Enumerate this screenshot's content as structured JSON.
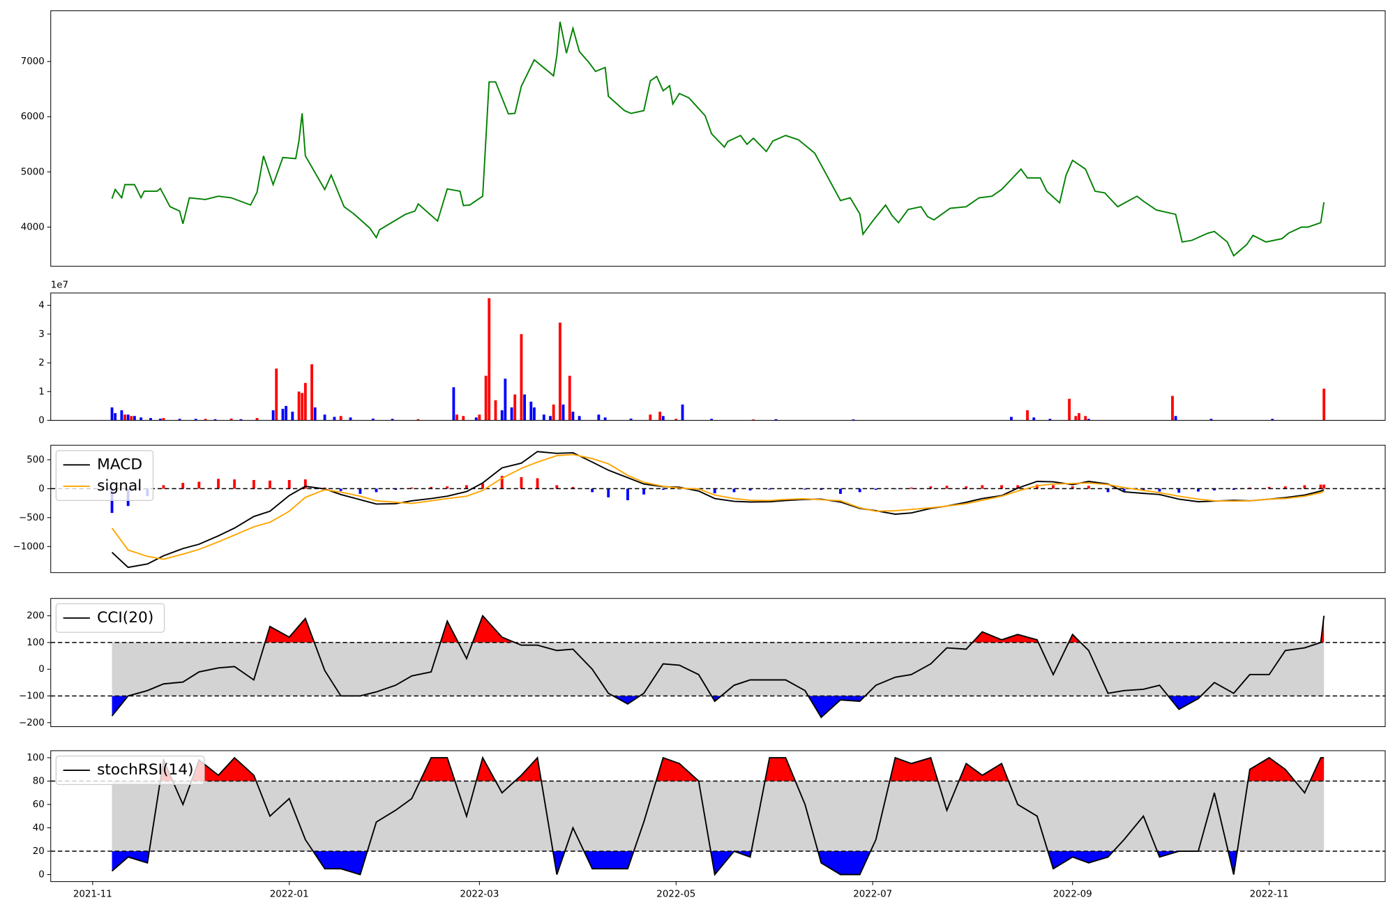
{
  "chart_data": [
    {
      "type": "line",
      "color": "green",
      "xlim": [
        -13,
        401
      ],
      "ylim": [
        3290,
        7920
      ],
      "yticks": [
        4000,
        5000,
        6000,
        7000
      ],
      "x": [
        6,
        7,
        9,
        10,
        13,
        15,
        16,
        20,
        21,
        24,
        27,
        28,
        30,
        35,
        39,
        43,
        49,
        51,
        53,
        56,
        59,
        63,
        64,
        65,
        66,
        72,
        74,
        78,
        81,
        86,
        88,
        89,
        97,
        100,
        101,
        107,
        110,
        114,
        115,
        117,
        121,
        123,
        125,
        127,
        129,
        131,
        133,
        137,
        143,
        144,
        145,
        147,
        149,
        151,
        154,
        156,
        159,
        160,
        165,
        167,
        171,
        173,
        175,
        177,
        179,
        180,
        182,
        185,
        190,
        192,
        196,
        197,
        201,
        203,
        205,
        209,
        211,
        215,
        219,
        224,
        227,
        232,
        235,
        238,
        239,
        242,
        246,
        248,
        250,
        253,
        257,
        259,
        261,
        266,
        271,
        275,
        279,
        282,
        288,
        290,
        294,
        296,
        300,
        302,
        304,
        308,
        311,
        314,
        318,
        324,
        326,
        330,
        336,
        338,
        341,
        346,
        348,
        352,
        354,
        358,
        360,
        364,
        369,
        371,
        375,
        377,
        381,
        382
      ],
      "values": [
        4516,
        4680,
        4530,
        4770,
        4770,
        4530,
        4650,
        4650,
        4700,
        4370,
        4290,
        4060,
        4530,
        4500,
        4560,
        4530,
        4400,
        4630,
        5290,
        4770,
        5260,
        5240,
        5560,
        6060,
        5290,
        4680,
        4940,
        4370,
        4240,
        3980,
        3810,
        3950,
        4230,
        4290,
        4420,
        4110,
        4690,
        4650,
        4390,
        4400,
        4560,
        6630,
        6630,
        6340,
        6050,
        6060,
        6550,
        7030,
        6740,
        7110,
        7720,
        7150,
        7600,
        7180,
        6980,
        6820,
        6890,
        6370,
        6110,
        6060,
        6110,
        6650,
        6730,
        6470,
        6560,
        6230,
        6420,
        6340,
        6020,
        5690,
        5450,
        5550,
        5660,
        5500,
        5610,
        5370,
        5560,
        5660,
        5580,
        5340,
        5020,
        4480,
        4530,
        4240,
        3870,
        4110,
        4400,
        4210,
        4080,
        4320,
        4370,
        4190,
        4130,
        4340,
        4370,
        4530,
        4560,
        4680,
        5050,
        4890,
        4890,
        4650,
        4440,
        4940,
        5210,
        5050,
        4650,
        4620,
        4370,
        4560,
        4470,
        4310,
        4230,
        3730,
        3760,
        3890,
        3920,
        3730,
        3480,
        3680,
        3850,
        3730,
        3790,
        3890,
        4000,
        4000,
        4080,
        4450
      ]
    },
    {
      "type": "bar",
      "offset_label": "1e7",
      "xlim": [
        -13,
        401
      ],
      "ylim": [
        0,
        4.43
      ],
      "yticks": [
        0,
        1,
        2,
        3,
        4
      ],
      "series": [
        {
          "color": "red",
          "x": [
            10,
            12,
            22,
            35,
            43,
            51,
            57,
            64,
            65,
            66,
            68,
            77,
            101,
            113,
            115,
            120,
            122,
            123,
            125,
            131,
            133,
            143,
            145,
            148,
            173,
            176,
            181,
            205,
            290,
            303,
            305,
            306,
            308,
            335,
            382
          ],
          "values": [
            0.2,
            0.15,
            0.08,
            0.05,
            0.06,
            0.08,
            1.8,
            1.0,
            0.95,
            1.3,
            1.95,
            0.15,
            0.04,
            0.2,
            0.15,
            0.2,
            1.55,
            4.25,
            0.7,
            0.9,
            3.0,
            0.55,
            3.4,
            1.55,
            0.2,
            0.3,
            0.05,
            0.03,
            0.35,
            0.75,
            0.15,
            0.25,
            0.15,
            0.85,
            1.1
          ]
        },
        {
          "color": "blue",
          "x": [
            6,
            7,
            9,
            11,
            13,
            15,
            18,
            21,
            27,
            32,
            38,
            46,
            56,
            59,
            60,
            62,
            69,
            72,
            75,
            80,
            87,
            93,
            112,
            119,
            127,
            128,
            130,
            134,
            136,
            137,
            140,
            142,
            146,
            149,
            151,
            157,
            159,
            167,
            177,
            183,
            192,
            212,
            236,
            285,
            292,
            297,
            309,
            336,
            347,
            366
          ],
          "values": [
            0.45,
            0.25,
            0.35,
            0.2,
            0.15,
            0.1,
            0.08,
            0.06,
            0.05,
            0.05,
            0.04,
            0.04,
            0.35,
            0.4,
            0.5,
            0.3,
            0.45,
            0.2,
            0.12,
            0.1,
            0.06,
            0.05,
            1.15,
            0.1,
            0.35,
            1.45,
            0.45,
            0.9,
            0.65,
            0.45,
            0.2,
            0.15,
            0.55,
            0.3,
            0.15,
            0.2,
            0.1,
            0.06,
            0.15,
            0.55,
            0.05,
            0.04,
            0.03,
            0.12,
            0.1,
            0.05,
            0.05,
            0.15,
            0.05,
            0.05
          ]
        }
      ]
    },
    {
      "type": "combo",
      "xlim": [
        -13,
        401
      ],
      "ylim": [
        -1450,
        750
      ],
      "yticks": [
        {
          "value": -1000,
          "label": "−1000"
        },
        {
          "value": -500,
          "label": "−500"
        },
        0,
        500
      ],
      "hline": 0,
      "legend": "upper left",
      "x": [
        6,
        11,
        17,
        22,
        28,
        33,
        39,
        44,
        50,
        55,
        61,
        66,
        72,
        77,
        83,
        88,
        94,
        99,
        105,
        110,
        116,
        121,
        127,
        133,
        138,
        144,
        149,
        155,
        160,
        166,
        171,
        177,
        182,
        188,
        193,
        199,
        204,
        210,
        215,
        221,
        226,
        232,
        238,
        243,
        249,
        254,
        260,
        265,
        271,
        276,
        282,
        287,
        293,
        298,
        304,
        309,
        315,
        320,
        326,
        331,
        337,
        343,
        348,
        354,
        359,
        365,
        370,
        376,
        381,
        382
      ],
      "series": [
        {
          "name": "MACD",
          "color": "black",
          "values": [
            -1100,
            -1360,
            -1300,
            -1160,
            -1035,
            -960,
            -815,
            -680,
            -480,
            -390,
            -120,
            40,
            -5,
            -100,
            -190,
            -265,
            -260,
            -210,
            -170,
            -130,
            -50,
            100,
            360,
            440,
            640,
            610,
            620,
            460,
            320,
            190,
            80,
            35,
            25,
            -40,
            -170,
            -220,
            -230,
            -225,
            -205,
            -185,
            -180,
            -230,
            -340,
            -380,
            -440,
            -420,
            -340,
            -300,
            -235,
            -170,
            -120,
            10,
            125,
            120,
            70,
            125,
            80,
            -55,
            -80,
            -100,
            -180,
            -225,
            -215,
            -200,
            -210,
            -180,
            -155,
            -110,
            -40,
            -20
          ]
        },
        {
          "name": "signal",
          "color": "orange",
          "values": [
            -680,
            -1060,
            -1170,
            -1220,
            -1130,
            -1050,
            -920,
            -800,
            -660,
            -580,
            -390,
            -150,
            -20,
            -60,
            -130,
            -210,
            -235,
            -255,
            -210,
            -170,
            -130,
            -30,
            180,
            350,
            460,
            570,
            590,
            520,
            430,
            230,
            110,
            40,
            10,
            -5,
            -110,
            -170,
            -200,
            -205,
            -185,
            -175,
            -190,
            -210,
            -330,
            -390,
            -380,
            -360,
            -330,
            -300,
            -260,
            -200,
            -130,
            -40,
            50,
            80,
            90,
            100,
            70,
            20,
            -30,
            -70,
            -130,
            -180,
            -210,
            -215,
            -210,
            -180,
            -170,
            -130,
            -70,
            -40
          ]
        }
      ],
      "histogram": {
        "positive_color": "red",
        "negative_color": "blue",
        "values": [
          -420,
          -300,
          -130,
          60,
          100,
          120,
          170,
          160,
          150,
          140,
          150,
          160,
          20,
          -40,
          -90,
          -60,
          -20,
          20,
          30,
          40,
          60,
          90,
          220,
          200,
          180,
          60,
          30,
          -60,
          -150,
          -200,
          -100,
          -20,
          -10,
          -20,
          -80,
          -60,
          -30,
          -15,
          -10,
          -15,
          -20,
          -90,
          -60,
          -20,
          -10,
          20,
          40,
          50,
          40,
          60,
          60,
          60,
          70,
          60,
          40,
          50,
          -60,
          -40,
          -40,
          -50,
          -70,
          -50,
          -30,
          -20,
          20,
          30,
          40,
          60,
          70,
          70
        ]
      }
    },
    {
      "type": "band",
      "xlim": [
        -13,
        401
      ],
      "ylim": [
        -215,
        265
      ],
      "yticks": [
        {
          "value": -200,
          "label": "−200"
        },
        {
          "value": -100,
          "label": "−100"
        },
        0,
        100,
        200
      ],
      "upper": 100,
      "lower": -100,
      "band_color": "lightgray",
      "above_color": "red",
      "below_color": "blue",
      "legend": "upper left",
      "x": [
        6,
        11,
        17,
        22,
        28,
        33,
        39,
        44,
        50,
        55,
        61,
        66,
        72,
        77,
        83,
        88,
        94,
        99,
        105,
        110,
        116,
        121,
        127,
        133,
        138,
        144,
        149,
        155,
        160,
        166,
        171,
        177,
        182,
        188,
        193,
        199,
        204,
        210,
        215,
        221,
        226,
        232,
        238,
        243,
        249,
        254,
        260,
        265,
        271,
        276,
        282,
        287,
        293,
        298,
        304,
        309,
        315,
        320,
        326,
        331,
        337,
        343,
        348,
        354,
        359,
        365,
        370,
        376,
        381,
        382
      ],
      "series": [
        {
          "name": "CCI(20)",
          "color": "black",
          "values": [
            -175,
            -100,
            -80,
            -55,
            -48,
            -10,
            5,
            10,
            -40,
            160,
            120,
            190,
            -5,
            -100,
            -100,
            -85,
            -60,
            -25,
            -10,
            180,
            40,
            200,
            120,
            90,
            90,
            70,
            75,
            0,
            -90,
            -130,
            -90,
            20,
            15,
            -20,
            -120,
            -60,
            -40,
            -40,
            -40,
            -80,
            -180,
            -115,
            -120,
            -60,
            -30,
            -20,
            20,
            80,
            75,
            140,
            110,
            130,
            110,
            -20,
            130,
            70,
            -90,
            -80,
            -75,
            -60,
            -150,
            -110,
            -50,
            -90,
            -20,
            -20,
            70,
            80,
            100,
            200
          ]
        }
      ]
    },
    {
      "type": "band",
      "xlim": [
        -13,
        401
      ],
      "ylim": [
        -6,
        106
      ],
      "yticks": [
        0,
        20,
        40,
        60,
        80,
        100
      ],
      "upper": 80,
      "lower": 20,
      "band_color": "lightgray",
      "above_color": "red",
      "below_color": "blue",
      "legend": "upper left",
      "xticks": [
        {
          "value": 0,
          "label": "2021-11"
        },
        {
          "value": 61,
          "label": "2022-01"
        },
        {
          "value": 120,
          "label": "2022-03"
        },
        {
          "value": 181,
          "label": "2022-05"
        },
        {
          "value": 242,
          "label": "2022-07"
        },
        {
          "value": 304,
          "label": "2022-09"
        },
        {
          "value": 365,
          "label": "2022-11"
        }
      ],
      "x": [
        6,
        11,
        17,
        22,
        28,
        33,
        39,
        44,
        50,
        55,
        61,
        66,
        72,
        77,
        83,
        88,
        94,
        99,
        105,
        110,
        116,
        121,
        127,
        133,
        138,
        144,
        149,
        155,
        160,
        166,
        171,
        177,
        182,
        188,
        193,
        199,
        204,
        210,
        215,
        221,
        226,
        232,
        238,
        243,
        249,
        254,
        260,
        265,
        271,
        276,
        282,
        287,
        293,
        298,
        304,
        309,
        315,
        320,
        326,
        331,
        337,
        343,
        348,
        354,
        359,
        365,
        370,
        376,
        381,
        382
      ],
      "series": [
        {
          "name": "stochRSI(14)",
          "color": "black",
          "values": [
            3,
            15,
            10,
            98,
            60,
            98,
            85,
            100,
            85,
            50,
            65,
            30,
            5,
            5,
            0,
            45,
            55,
            65,
            100,
            100,
            50,
            100,
            70,
            85,
            100,
            0,
            40,
            5,
            5,
            5,
            45,
            100,
            95,
            80,
            0,
            20,
            15,
            100,
            100,
            60,
            10,
            0,
            0,
            30,
            100,
            95,
            100,
            55,
            95,
            85,
            95,
            60,
            50,
            5,
            15,
            10,
            15,
            30,
            50,
            15,
            20,
            20,
            70,
            0,
            90,
            100,
            90,
            70,
            100,
            100
          ]
        }
      ]
    }
  ]
}
